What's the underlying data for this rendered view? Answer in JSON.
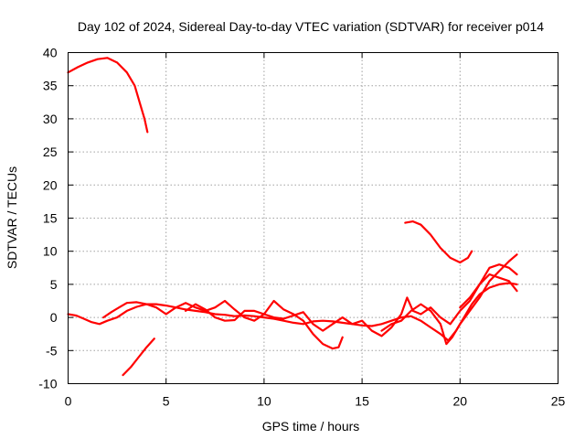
{
  "chart_data": {
    "type": "line",
    "title": "Day 102 of 2024, Sidereal Day-to-day VTEC variation (SDTVAR) for receiver p014",
    "xlabel": "GPS time / hours",
    "ylabel": "SDTVAR / TECUs",
    "xlim": [
      0,
      25
    ],
    "ylim": [
      -10,
      40
    ],
    "xticks": [
      0,
      5,
      10,
      15,
      20,
      25
    ],
    "yticks": [
      -10,
      -5,
      0,
      5,
      10,
      15,
      20,
      25,
      30,
      35,
      40
    ],
    "grid": true,
    "legend": "none",
    "color": "#ff0000",
    "series": [
      {
        "name": "arc-1",
        "points": [
          [
            0.0,
            37.0
          ],
          [
            0.5,
            37.8
          ],
          [
            1.0,
            38.5
          ],
          [
            1.5,
            39.0
          ],
          [
            2.0,
            39.2
          ],
          [
            2.5,
            38.5
          ],
          [
            3.0,
            37.0
          ],
          [
            3.4,
            35.0
          ],
          [
            3.7,
            32.0
          ],
          [
            3.9,
            30.0
          ],
          [
            4.05,
            28.0
          ]
        ]
      },
      {
        "name": "arc-2",
        "points": [
          [
            2.8,
            -8.7
          ],
          [
            3.2,
            -7.5
          ],
          [
            3.6,
            -6.0
          ],
          [
            4.0,
            -4.5
          ],
          [
            4.4,
            -3.2
          ]
        ]
      },
      {
        "name": "arc-3",
        "points": [
          [
            17.2,
            14.3
          ],
          [
            17.6,
            14.5
          ],
          [
            18.0,
            14.0
          ],
          [
            18.5,
            12.5
          ],
          [
            19.0,
            10.5
          ],
          [
            19.5,
            9.0
          ],
          [
            20.0,
            8.3
          ],
          [
            20.4,
            9.0
          ],
          [
            20.6,
            10.0
          ]
        ]
      },
      {
        "name": "arc-4",
        "points": [
          [
            0.0,
            0.5
          ],
          [
            0.4,
            0.3
          ],
          [
            0.8,
            -0.2
          ],
          [
            1.2,
            -0.7
          ],
          [
            1.6,
            -1.0
          ],
          [
            2.0,
            -0.5
          ],
          [
            2.5,
            0.0
          ],
          [
            3.0,
            1.0
          ],
          [
            3.5,
            1.6
          ],
          [
            4.0,
            2.0
          ],
          [
            4.5,
            2.0
          ],
          [
            5.0,
            1.8
          ],
          [
            5.5,
            1.5
          ],
          [
            6.0,
            1.2
          ],
          [
            6.5,
            1.0
          ],
          [
            7.0,
            0.8
          ],
          [
            7.5,
            0.5
          ],
          [
            8.0,
            0.4
          ],
          [
            8.5,
            0.2
          ],
          [
            9.0,
            0.3
          ],
          [
            9.5,
            0.2
          ],
          [
            10.0,
            0.0
          ],
          [
            10.5,
            -0.2
          ],
          [
            11.0,
            -0.5
          ],
          [
            11.5,
            -0.8
          ],
          [
            12.0,
            -1.0
          ],
          [
            12.5,
            -0.6
          ],
          [
            13.0,
            -0.5
          ],
          [
            13.5,
            -0.6
          ],
          [
            14.0,
            -0.8
          ],
          [
            14.5,
            -1.0
          ],
          [
            15.0,
            -1.2
          ],
          [
            15.5,
            -1.3
          ],
          [
            16.0,
            -1.0
          ],
          [
            16.5,
            -0.5
          ],
          [
            17.0,
            0.0
          ],
          [
            17.5,
            0.2
          ],
          [
            18.0,
            -0.5
          ],
          [
            18.5,
            -1.5
          ],
          [
            19.0,
            -2.5
          ],
          [
            19.4,
            -3.5
          ],
          [
            19.8,
            -2.0
          ],
          [
            20.2,
            0.0
          ],
          [
            20.6,
            2.0
          ],
          [
            21.0,
            3.5
          ],
          [
            21.5,
            4.5
          ],
          [
            22.0,
            5.0
          ],
          [
            22.5,
            5.2
          ],
          [
            22.9,
            5.0
          ]
        ]
      },
      {
        "name": "arc-5",
        "points": [
          [
            1.8,
            0.0
          ],
          [
            2.2,
            0.8
          ],
          [
            2.6,
            1.5
          ],
          [
            3.0,
            2.2
          ],
          [
            3.5,
            2.3
          ],
          [
            4.0,
            2.0
          ],
          [
            4.5,
            1.5
          ],
          [
            5.0,
            0.5
          ],
          [
            5.5,
            1.5
          ],
          [
            6.0,
            2.2
          ],
          [
            6.5,
            1.5
          ],
          [
            7.0,
            1.0
          ],
          [
            7.5,
            1.5
          ],
          [
            8.0,
            2.5
          ],
          [
            8.5,
            1.2
          ],
          [
            9.0,
            0.0
          ],
          [
            9.5,
            -0.5
          ],
          [
            10.0,
            0.5
          ],
          [
            10.5,
            2.5
          ],
          [
            11.0,
            1.2
          ],
          [
            11.5,
            0.5
          ],
          [
            12.0,
            -0.5
          ],
          [
            12.5,
            -2.5
          ],
          [
            13.0,
            -4.0
          ],
          [
            13.5,
            -4.7
          ],
          [
            13.8,
            -4.5
          ],
          [
            14.0,
            -3.0
          ]
        ]
      },
      {
        "name": "arc-6",
        "points": [
          [
            6.0,
            1.0
          ],
          [
            6.5,
            2.0
          ],
          [
            7.0,
            1.2
          ],
          [
            7.5,
            0.0
          ],
          [
            8.0,
            -0.5
          ],
          [
            8.5,
            -0.4
          ],
          [
            9.0,
            1.0
          ],
          [
            9.5,
            1.0
          ],
          [
            10.0,
            0.5
          ],
          [
            10.5,
            0.0
          ],
          [
            11.0,
            -0.2
          ],
          [
            11.5,
            0.3
          ],
          [
            12.0,
            0.8
          ],
          [
            12.5,
            -1.0
          ],
          [
            13.0,
            -2.0
          ],
          [
            13.5,
            -1.0
          ],
          [
            14.0,
            0.0
          ],
          [
            14.5,
            -1.0
          ],
          [
            15.0,
            -0.5
          ],
          [
            15.5,
            -2.0
          ],
          [
            16.0,
            -2.8
          ],
          [
            16.5,
            -1.5
          ],
          [
            17.0,
            0.5
          ],
          [
            17.3,
            3.0
          ],
          [
            17.6,
            1.0
          ],
          [
            18.0,
            0.5
          ],
          [
            18.5,
            1.5
          ],
          [
            19.0,
            0.0
          ],
          [
            19.5,
            -1.0
          ],
          [
            20.0,
            1.0
          ],
          [
            20.5,
            2.5
          ],
          [
            21.0,
            5.0
          ],
          [
            21.5,
            7.5
          ],
          [
            22.0,
            8.0
          ],
          [
            22.5,
            7.5
          ],
          [
            22.9,
            6.5
          ]
        ]
      },
      {
        "name": "arc-7",
        "points": [
          [
            16.0,
            -2.0
          ],
          [
            16.5,
            -1.0
          ],
          [
            17.0,
            -0.5
          ],
          [
            17.5,
            1.0
          ],
          [
            18.0,
            2.0
          ],
          [
            18.5,
            1.0
          ],
          [
            19.0,
            -1.0
          ],
          [
            19.3,
            -4.0
          ],
          [
            19.6,
            -3.0
          ],
          [
            20.0,
            -1.0
          ],
          [
            20.5,
            1.0
          ],
          [
            21.0,
            3.0
          ],
          [
            21.5,
            5.5
          ],
          [
            22.0,
            7.0
          ],
          [
            22.5,
            8.5
          ],
          [
            22.9,
            9.5
          ]
        ]
      },
      {
        "name": "arc-8",
        "points": [
          [
            20.0,
            1.5
          ],
          [
            20.5,
            3.0
          ],
          [
            21.0,
            5.0
          ],
          [
            21.5,
            6.5
          ],
          [
            22.0,
            6.0
          ],
          [
            22.5,
            5.5
          ],
          [
            22.9,
            4.0
          ]
        ]
      }
    ]
  }
}
